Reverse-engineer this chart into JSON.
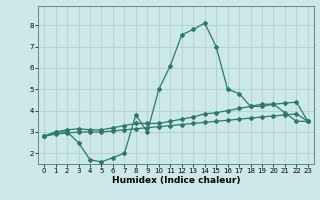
{
  "title": "",
  "xlabel": "Humidex (Indice chaleur)",
  "ylabel": "",
  "background_color": "#cce8e8",
  "grid_color": "#aacccc",
  "line_color": "#2a7a6a",
  "xlim": [
    -0.5,
    23.5
  ],
  "ylim": [
    1.5,
    8.9
  ],
  "yticks": [
    2,
    3,
    4,
    5,
    6,
    7,
    8
  ],
  "xticks": [
    0,
    1,
    2,
    3,
    4,
    5,
    6,
    7,
    8,
    9,
    10,
    11,
    12,
    13,
    14,
    15,
    16,
    17,
    18,
    19,
    20,
    21,
    22,
    23
  ],
  "line1_x": [
    0,
    1,
    2,
    3,
    4,
    5,
    6,
    7,
    8,
    9,
    10,
    11,
    12,
    13,
    14,
    15,
    16,
    17,
    18,
    19,
    20,
    21,
    22,
    23
  ],
  "line1_y": [
    2.8,
    3.0,
    3.0,
    2.5,
    1.7,
    1.6,
    1.8,
    2.0,
    3.8,
    3.0,
    5.0,
    6.1,
    7.55,
    7.8,
    8.1,
    7.0,
    5.0,
    4.8,
    4.2,
    4.3,
    4.3,
    3.9,
    3.5,
    3.5
  ],
  "line2_x": [
    0,
    1,
    2,
    3,
    4,
    5,
    6,
    7,
    8,
    9,
    10,
    11,
    12,
    13,
    14,
    15,
    16,
    17,
    18,
    19,
    20,
    21,
    22,
    23
  ],
  "line2_y": [
    2.8,
    3.0,
    3.1,
    3.15,
    3.1,
    3.1,
    3.2,
    3.3,
    3.4,
    3.4,
    3.4,
    3.5,
    3.6,
    3.7,
    3.85,
    3.9,
    4.0,
    4.1,
    4.2,
    4.2,
    4.3,
    4.35,
    4.4,
    3.5
  ],
  "line3_x": [
    0,
    1,
    2,
    3,
    4,
    5,
    6,
    7,
    8,
    9,
    10,
    11,
    12,
    13,
    14,
    15,
    16,
    17,
    18,
    19,
    20,
    21,
    22,
    23
  ],
  "line3_y": [
    2.8,
    2.9,
    2.95,
    3.0,
    3.0,
    3.0,
    3.05,
    3.1,
    3.15,
    3.2,
    3.25,
    3.3,
    3.35,
    3.4,
    3.45,
    3.5,
    3.55,
    3.6,
    3.65,
    3.7,
    3.75,
    3.8,
    3.85,
    3.5
  ]
}
